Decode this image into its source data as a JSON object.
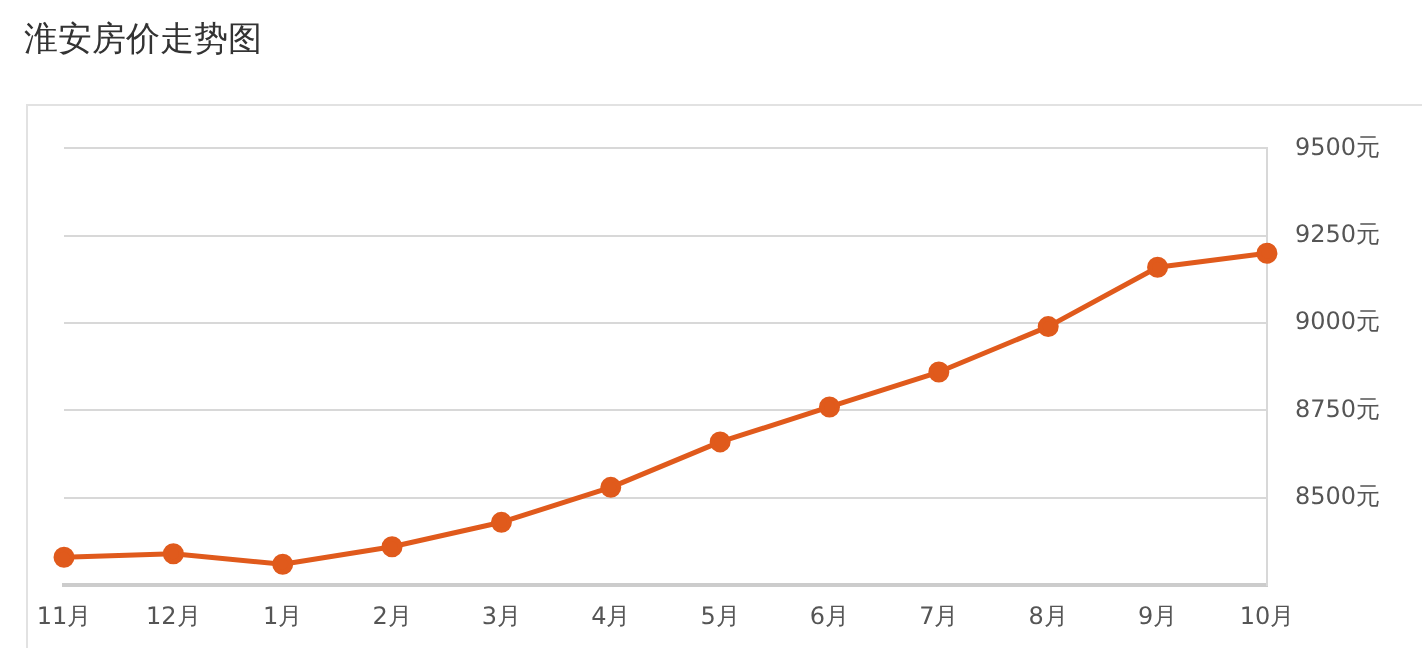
{
  "chart_data": {
    "type": "line",
    "title": "淮安房价走势图",
    "categories": [
      "11月",
      "12月",
      "1月",
      "2月",
      "3月",
      "4月",
      "5月",
      "6月",
      "7月",
      "8月",
      "9月",
      "10月"
    ],
    "series": [
      {
        "color": "#e05a1c",
        "values": [
          8330,
          8340,
          8310,
          8360,
          8430,
          8530,
          8660,
          8760,
          8860,
          8990,
          9160,
          9200
        ]
      }
    ],
    "ylim": [
      8250,
      9500
    ],
    "yticks": [
      {
        "value": 8500,
        "label": "8500元"
      },
      {
        "value": 8750,
        "label": "8750元"
      },
      {
        "value": 9000,
        "label": "9000元"
      },
      {
        "value": 9250,
        "label": "9250元"
      },
      {
        "value": 9500,
        "label": "9500元"
      }
    ],
    "grid": "y",
    "legend": false,
    "marker": "circle",
    "line_style": "solid"
  }
}
